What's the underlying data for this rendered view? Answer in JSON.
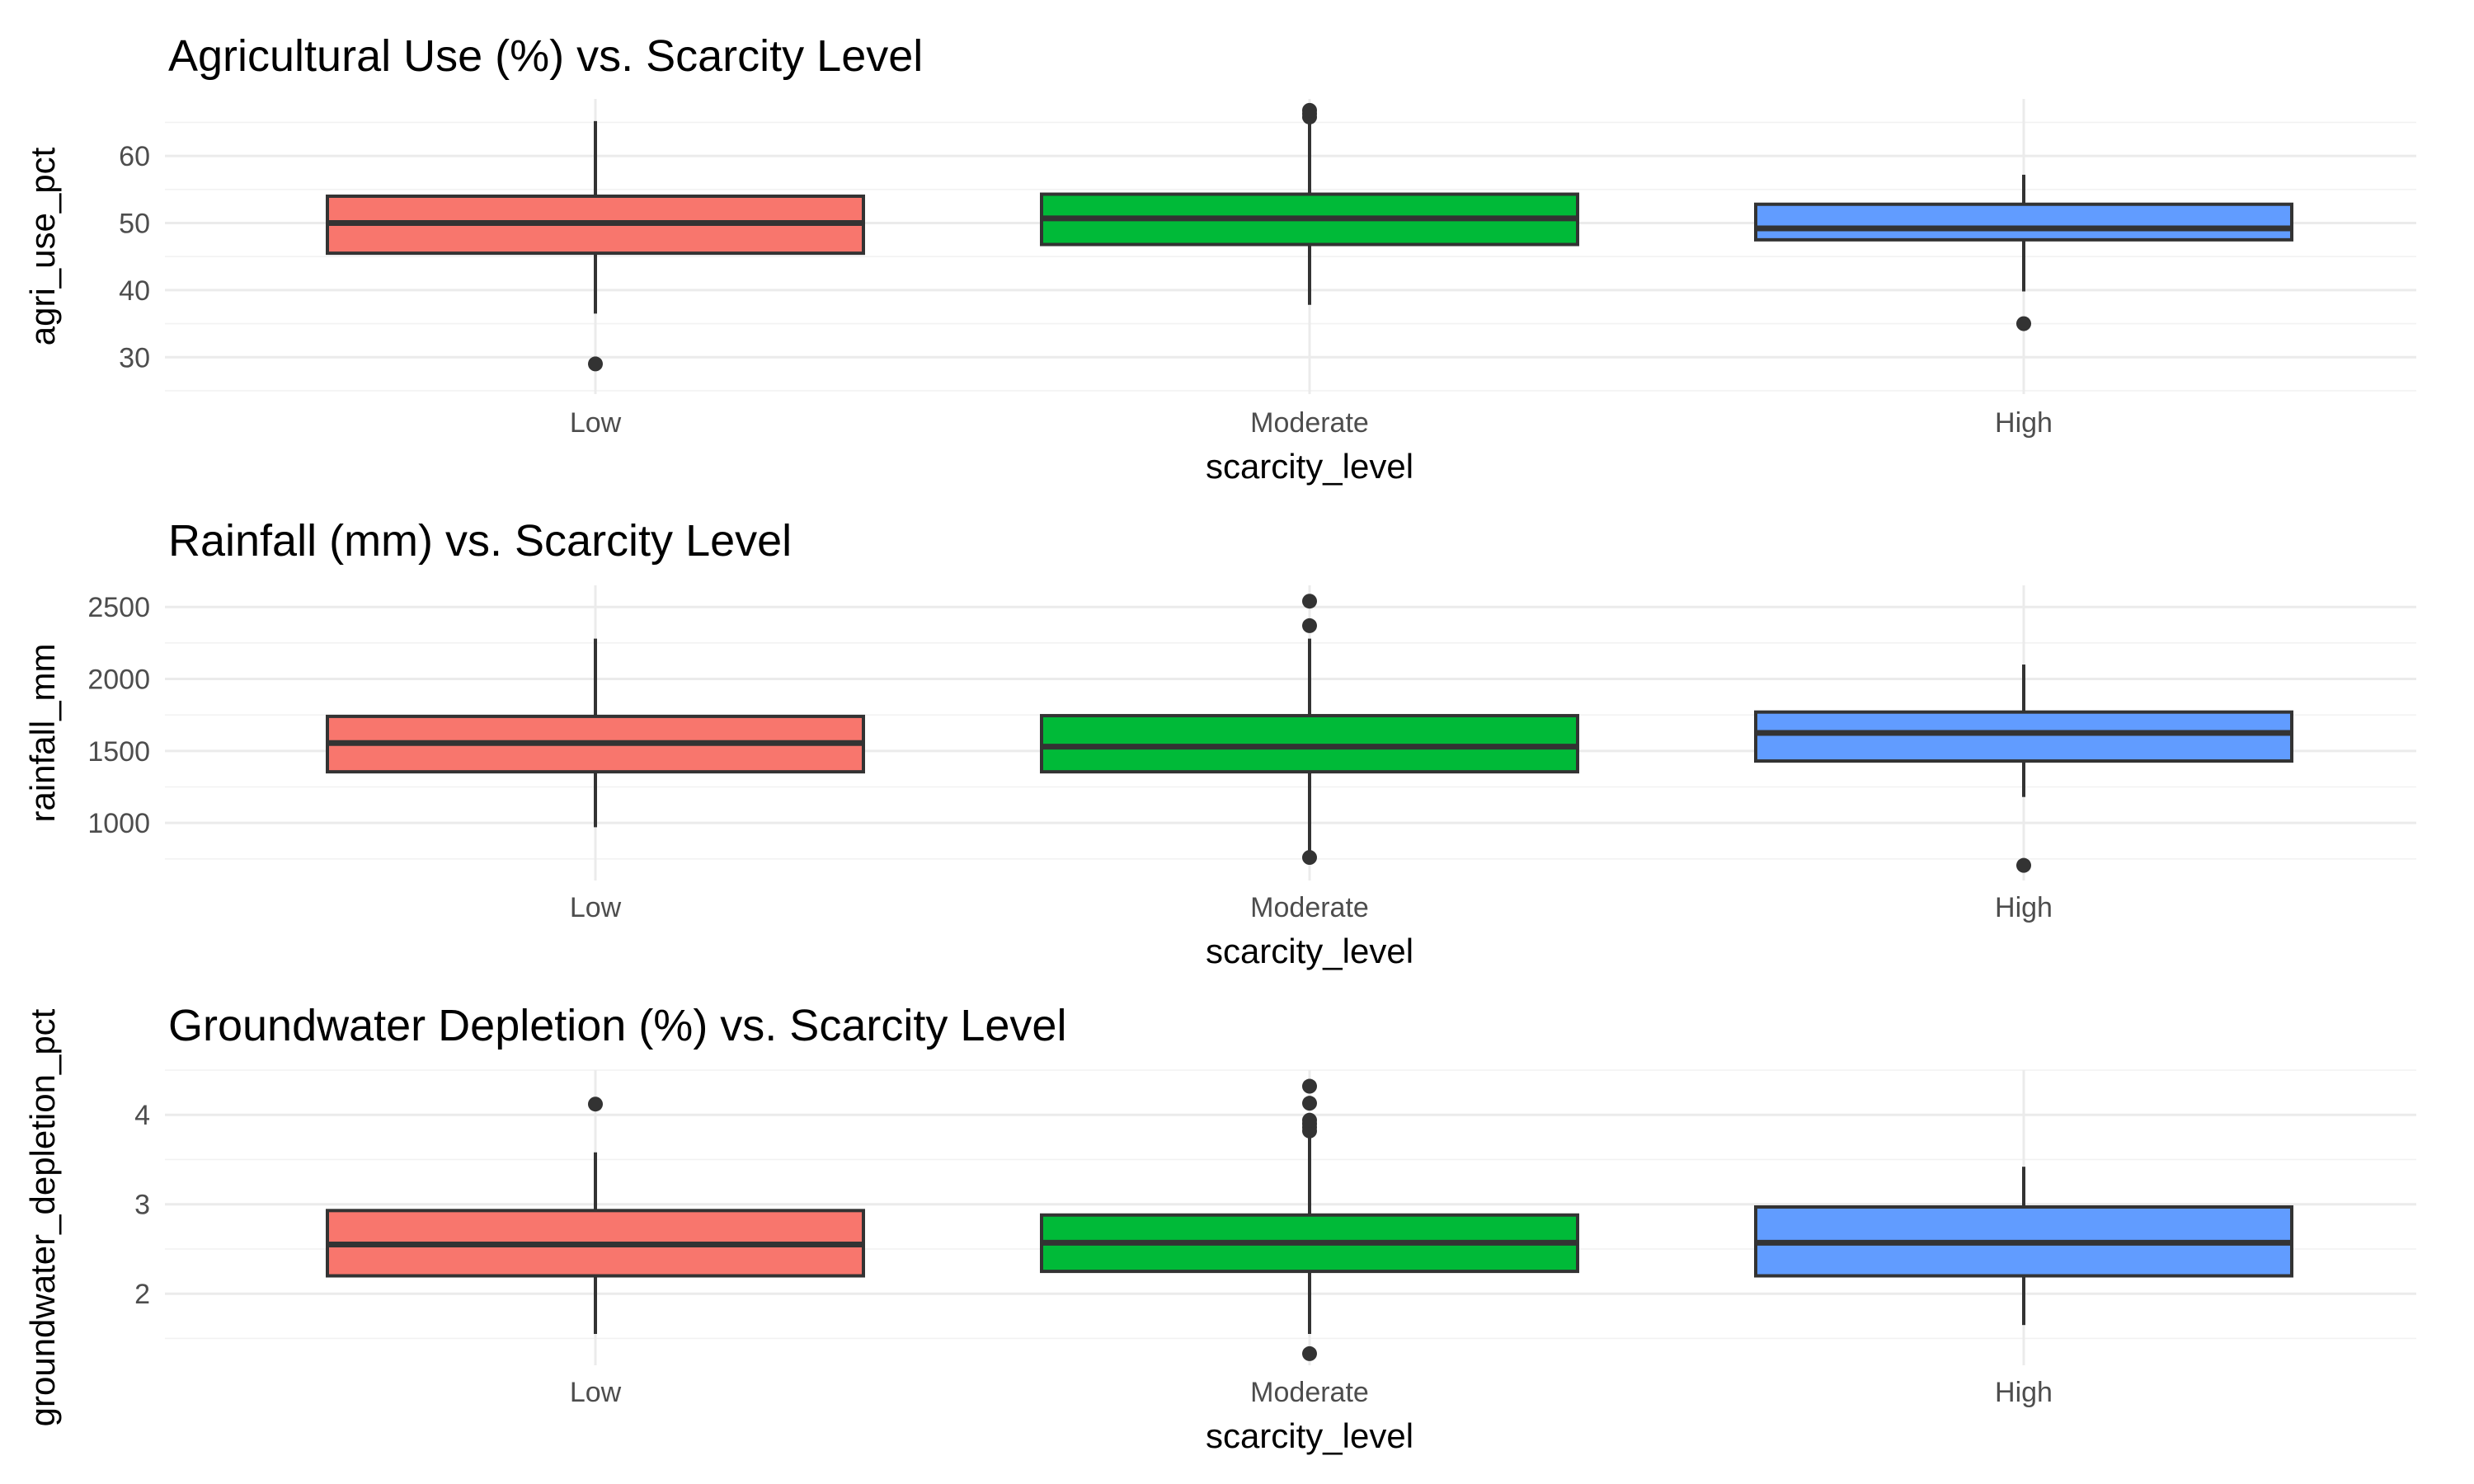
{
  "chart_data": [
    {
      "type": "box",
      "title": "Agricultural Use (%) vs. Scarcity Level",
      "xlabel": "scarcity_level",
      "ylabel": "agri_use_pct",
      "categories": [
        "Low",
        "Moderate",
        "High"
      ],
      "colors": [
        "#F8766D",
        "#00BA38",
        "#619CFF"
      ],
      "ylim": [
        24.5,
        68.5
      ],
      "yticks": [
        30,
        40,
        50,
        60
      ],
      "tick_labels": [
        "30",
        "40",
        "50",
        "60"
      ],
      "boxes": [
        {
          "category": "Low",
          "whisker_low": 36.5,
          "q1": 45.5,
          "median": 50.0,
          "q3": 54.0,
          "whisker_high": 65.2,
          "outliers": [
            29.0
          ]
        },
        {
          "category": "Moderate",
          "whisker_low": 37.8,
          "q1": 46.8,
          "median": 50.7,
          "q3": 54.3,
          "whisker_high": 65.0,
          "outliers": [
            65.8,
            66.3,
            66.8
          ]
        },
        {
          "category": "High",
          "whisker_low": 39.8,
          "q1": 47.5,
          "median": 49.2,
          "q3": 52.8,
          "whisker_high": 57.2,
          "outliers": [
            35.0
          ]
        }
      ]
    },
    {
      "type": "box",
      "title": "Rainfall (mm) vs. Scarcity Level",
      "xlabel": "scarcity_level",
      "ylabel": "rainfall_mm",
      "categories": [
        "Low",
        "Moderate",
        "High"
      ],
      "colors": [
        "#F8766D",
        "#00BA38",
        "#619CFF"
      ],
      "ylim": [
        600,
        2650
      ],
      "yticks": [
        1000,
        1500,
        2000,
        2500
      ],
      "tick_labels": [
        "1000",
        "1500",
        "2000",
        "2500"
      ],
      "boxes": [
        {
          "category": "Low",
          "whisker_low": 970,
          "q1": 1355,
          "median": 1555,
          "q3": 1740,
          "whisker_high": 2280,
          "outliers": []
        },
        {
          "category": "Moderate",
          "whisker_low": 780,
          "q1": 1355,
          "median": 1530,
          "q3": 1745,
          "whisker_high": 2280,
          "outliers": [
            760,
            2370,
            2540
          ]
        },
        {
          "category": "High",
          "whisker_low": 1180,
          "q1": 1430,
          "median": 1625,
          "q3": 1770,
          "whisker_high": 2100,
          "outliers": [
            705
          ]
        }
      ]
    },
    {
      "type": "box",
      "title": "Groundwater Depletion (%) vs. Scarcity Level",
      "xlabel": "scarcity_level",
      "ylabel": "groundwater_depletion_pct",
      "categories": [
        "Low",
        "Moderate",
        "High"
      ],
      "colors": [
        "#F8766D",
        "#00BA38",
        "#619CFF"
      ],
      "ylim": [
        1.2,
        4.5
      ],
      "yticks": [
        2,
        3,
        4
      ],
      "tick_labels": [
        "2",
        "3",
        "4"
      ],
      "boxes": [
        {
          "category": "Low",
          "whisker_low": 1.55,
          "q1": 2.2,
          "median": 2.55,
          "q3": 2.93,
          "whisker_high": 3.58,
          "outliers": [
            4.12
          ]
        },
        {
          "category": "Moderate",
          "whisker_low": 1.55,
          "q1": 2.25,
          "median": 2.57,
          "q3": 2.88,
          "whisker_high": 3.78,
          "outliers": [
            1.33,
            3.82,
            3.86,
            3.9,
            3.94,
            4.13,
            4.32
          ]
        },
        {
          "category": "High",
          "whisker_low": 1.65,
          "q1": 2.2,
          "median": 2.57,
          "q3": 2.97,
          "whisker_high": 3.42,
          "outliers": []
        }
      ]
    }
  ]
}
